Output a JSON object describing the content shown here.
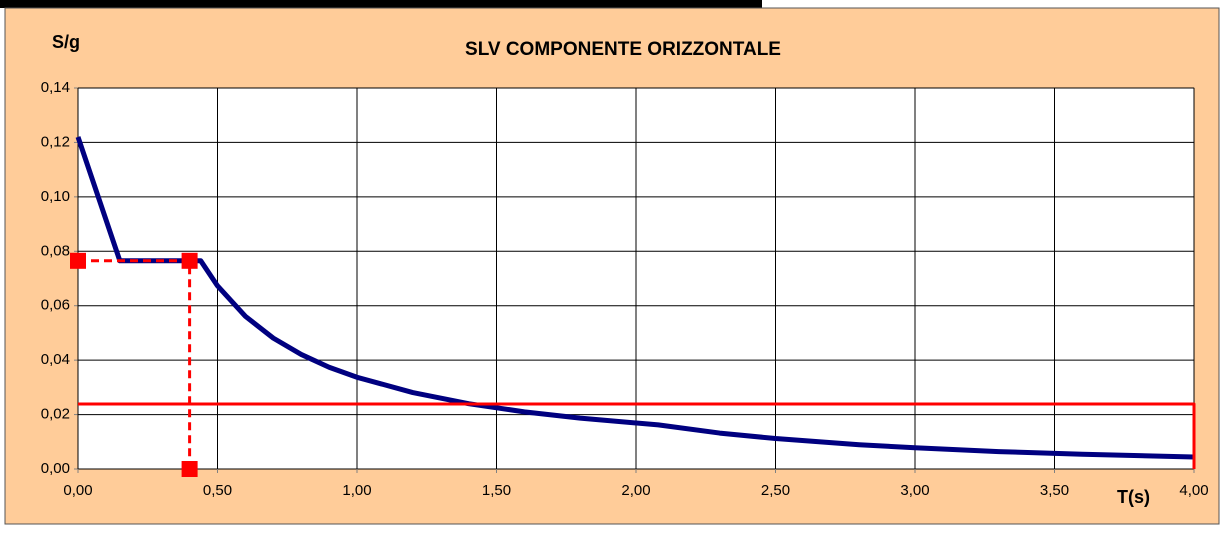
{
  "chart_data": {
    "type": "line",
    "title": "SLV COMPONENTE ORIZZONTALE",
    "y_label": "S/g",
    "x_label": "T(s)",
    "xlim": [
      0,
      4
    ],
    "ylim": [
      0,
      0.14
    ],
    "xticks": [
      {
        "value": 0,
        "label": "0,00"
      },
      {
        "value": 0.5,
        "label": "0,50"
      },
      {
        "value": 1,
        "label": "1,00"
      },
      {
        "value": 1.5,
        "label": "1,50"
      },
      {
        "value": 2,
        "label": "2,00"
      },
      {
        "value": 2.5,
        "label": "2,50"
      },
      {
        "value": 3,
        "label": "3,00"
      },
      {
        "value": 3.5,
        "label": "3,50"
      },
      {
        "value": 4,
        "label": "4,00"
      }
    ],
    "yticks": [
      {
        "value": 0,
        "label": "0,00"
      },
      {
        "value": 0.02,
        "label": "0,02"
      },
      {
        "value": 0.04,
        "label": "0,04"
      },
      {
        "value": 0.06,
        "label": "0,06"
      },
      {
        "value": 0.08,
        "label": "0,08"
      },
      {
        "value": 0.1,
        "label": "0,10"
      },
      {
        "value": 0.12,
        "label": "0,12"
      },
      {
        "value": 0.14,
        "label": "0,14"
      }
    ],
    "grid": true,
    "series": [
      {
        "color": "#000080",
        "dashed": false,
        "markers": false,
        "width": 5,
        "x": [
          0,
          0.15,
          0.44,
          0.5,
          0.6,
          0.7,
          0.8,
          0.9,
          1.0,
          1.2,
          1.4,
          1.6,
          1.8,
          2.08,
          2.3,
          2.5,
          2.8,
          3.0,
          3.3,
          3.6,
          4.0
        ],
        "values": [
          0.122,
          0.0765,
          0.0765,
          0.0673,
          0.0561,
          0.0481,
          0.0421,
          0.0374,
          0.0337,
          0.0281,
          0.024,
          0.021,
          0.0187,
          0.0162,
          0.0132,
          0.0112,
          0.0089,
          0.0078,
          0.0064,
          0.0054,
          0.0044
        ]
      },
      {
        "color": "#ff0000",
        "dashed": false,
        "markers": false,
        "width": 3,
        "x": [
          0,
          4,
          4
        ],
        "values": [
          0.0239,
          0.0239,
          0
        ]
      },
      {
        "color": "#ff0000",
        "dashed": true,
        "markers": true,
        "width": 3,
        "x": [
          0,
          0.4,
          0.4
        ],
        "values": [
          0.0765,
          0.0765,
          0
        ]
      }
    ]
  }
}
